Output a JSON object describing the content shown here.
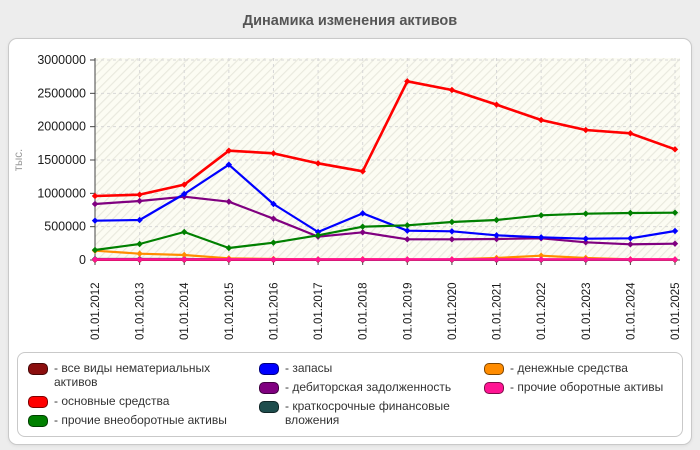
{
  "chart_data": {
    "type": "line",
    "title": "Динамика изменения активов",
    "xlabel": "",
    "ylabel": "тыс.",
    "x": [
      "01.01.2012",
      "01.01.2013",
      "01.01.2014",
      "01.01.2015",
      "01.01.2016",
      "01.01.2017",
      "01.01.2018",
      "01.01.2019",
      "01.01.2020",
      "01.01.2021",
      "01.01.2022",
      "01.01.2023",
      "01.01.2024",
      "01.01.2025"
    ],
    "ylim": [
      0,
      3000000
    ],
    "ytick_step": 500000,
    "yticks": [
      0,
      500000,
      1000000,
      1500000,
      2000000,
      2500000,
      3000000
    ],
    "grid": true,
    "legend_position": "bottom",
    "series": [
      {
        "name": "все виды нематериальных активов",
        "color": "#8B0E0E",
        "values": [
          2000,
          2000,
          2000,
          2000,
          2000,
          2000,
          2000,
          2000,
          2000,
          2000,
          2000,
          2000,
          2000,
          2000
        ]
      },
      {
        "name": "основные средства",
        "color": "#FF0000",
        "values": [
          960000,
          980000,
          1130000,
          1640000,
          1600000,
          1450000,
          1330000,
          2680000,
          2550000,
          2330000,
          2100000,
          1950000,
          1900000,
          1660000
        ]
      },
      {
        "name": "прочие внеоборотные активы",
        "color": "#008000",
        "values": [
          150000,
          240000,
          420000,
          180000,
          260000,
          370000,
          500000,
          520000,
          570000,
          600000,
          670000,
          695000,
          705000,
          710000
        ]
      },
      {
        "name": "запасы",
        "color": "#0000FF",
        "values": [
          590000,
          600000,
          990000,
          1430000,
          840000,
          420000,
          700000,
          440000,
          430000,
          370000,
          340000,
          320000,
          325000,
          435000
        ]
      },
      {
        "name": "дебиторская задолженность",
        "color": "#800080",
        "values": [
          840000,
          885000,
          950000,
          875000,
          620000,
          350000,
          415000,
          310000,
          310000,
          315000,
          325000,
          265000,
          235000,
          245000
        ]
      },
      {
        "name": "краткосрочные финансовые вложения",
        "color": "#1E4D4D",
        "values": [
          15000,
          15000,
          15000,
          10000,
          10000,
          8000,
          5000,
          3000,
          3000,
          3000,
          3000,
          3000,
          3000,
          3000
        ]
      },
      {
        "name": "денежные средства",
        "color": "#FF8C00",
        "values": [
          140000,
          95000,
          75000,
          25000,
          15000,
          10000,
          12000,
          8000,
          10000,
          30000,
          65000,
          30000,
          10000,
          8000
        ]
      },
      {
        "name": "прочие оборотные активы",
        "color": "#FF1493",
        "values": [
          8000,
          8000,
          8000,
          8000,
          8000,
          8000,
          8000,
          8000,
          8000,
          8000,
          8000,
          8000,
          8000,
          8000
        ]
      }
    ]
  },
  "legend": {
    "items": [
      {
        "label": "- все виды нематериальных активов"
      },
      {
        "label": "- основные средства"
      },
      {
        "label": "- прочие внеоборотные активы"
      },
      {
        "label": "- запасы"
      },
      {
        "label": "- дебиторская задолженность"
      },
      {
        "label": "- краткосрочные финансовые вложения"
      },
      {
        "label": "- денежные средства"
      },
      {
        "label": "- прочие оборотные активы"
      }
    ]
  }
}
